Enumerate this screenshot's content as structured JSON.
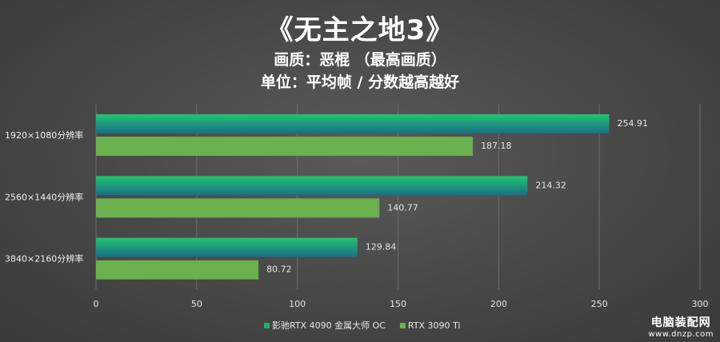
{
  "chart_data": {
    "type": "bar",
    "orientation": "horizontal",
    "title": "《无主之地3》",
    "subtitle_lines": [
      "画质：恶棍 （最高画质）",
      "单位：平均帧 / 分数越高越好"
    ],
    "categories": [
      "1920×1080分辨率",
      "2560×1440分辨率",
      "3840×2160分辨率"
    ],
    "series": [
      {
        "name": "影驰RTX 4090 金属大师 OC",
        "values": [
          254.91,
          214.32,
          129.84
        ],
        "color": "#1fae6a"
      },
      {
        "name": "RTX 3090 Ti",
        "values": [
          187.18,
          140.77,
          80.72
        ],
        "color": "#6ab04c"
      }
    ],
    "xlim": [
      0,
      300
    ],
    "xticks": [
      0,
      50,
      100,
      150,
      200,
      250,
      300
    ],
    "grid": true,
    "legend_position": "bottom-center"
  },
  "watermark": {
    "main": "电脑装配网",
    "sub": "www.dnzp.com"
  }
}
